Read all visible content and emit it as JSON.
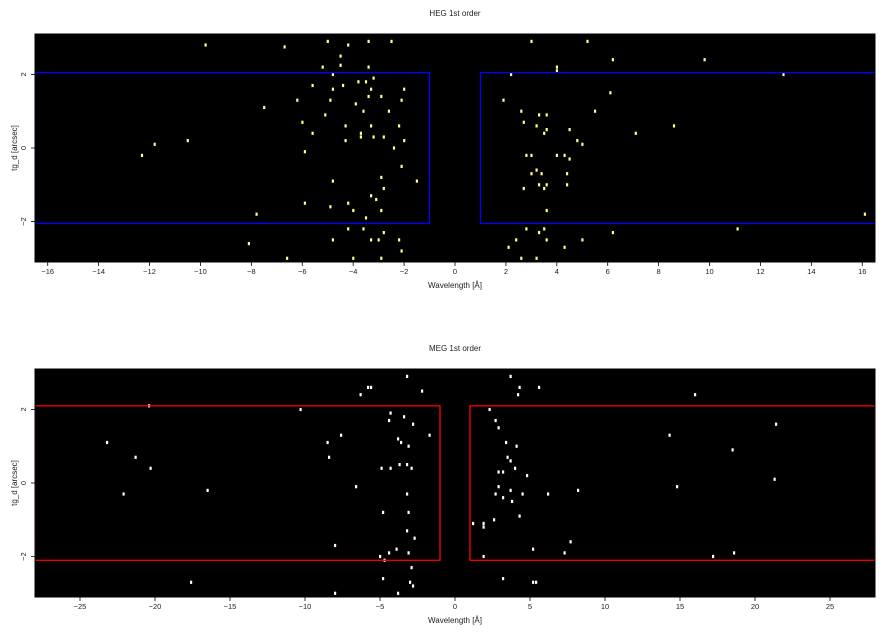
{
  "chart_data": [
    {
      "type": "scatter",
      "title": "HEG 1st order",
      "xlabel": "Wavelength [Å]",
      "ylabel": "tg_d [arcsec]",
      "xlim": [
        -16.5,
        16.5
      ],
      "ylim": [
        -3.1,
        3.1
      ],
      "xticks": [
        -16,
        -14,
        -12,
        -10,
        -8,
        -6,
        -4,
        -2,
        0,
        2,
        4,
        6,
        8,
        10,
        12,
        14,
        16
      ],
      "yticks": [
        -2,
        0,
        2
      ],
      "background": "#000000",
      "marker_color": "#ffff80",
      "region_color": "#0000ff",
      "grid": false,
      "regions": [
        {
          "x0": -16.5,
          "x1": -1.0,
          "y0": -2.05,
          "y1": 2.05
        },
        {
          "x0": 1.0,
          "x1": 16.5,
          "y0": -2.05,
          "y1": 2.05
        }
      ],
      "points": [
        [
          -9.8,
          2.8
        ],
        [
          -6.7,
          2.75
        ],
        [
          -5.0,
          2.9
        ],
        [
          -4.5,
          2.5
        ],
        [
          -4.2,
          2.8
        ],
        [
          -3.4,
          2.9
        ],
        [
          -2.5,
          2.9
        ],
        [
          -5.2,
          2.2
        ],
        [
          -4.8,
          2.0
        ],
        [
          -4.5,
          2.25
        ],
        [
          -3.8,
          1.8
        ],
        [
          -3.4,
          2.2
        ],
        [
          -3.2,
          1.9
        ],
        [
          -2.0,
          1.6
        ],
        [
          -5.6,
          1.7
        ],
        [
          -4.8,
          1.6
        ],
        [
          -4.4,
          1.7
        ],
        [
          -3.5,
          1.8
        ],
        [
          -3.3,
          1.6
        ],
        [
          -2.9,
          1.4
        ],
        [
          -2.1,
          1.3
        ],
        [
          -6.2,
          1.3
        ],
        [
          -7.5,
          1.1
        ],
        [
          -4.9,
          1.3
        ],
        [
          -3.9,
          1.2
        ],
        [
          -3.6,
          1.0
        ],
        [
          -3.4,
          1.4
        ],
        [
          -2.6,
          1.0
        ],
        [
          -6.0,
          0.7
        ],
        [
          -5.6,
          0.4
        ],
        [
          -5.1,
          0.9
        ],
        [
          -4.3,
          0.6
        ],
        [
          -3.7,
          0.4
        ],
        [
          -3.3,
          0.6
        ],
        [
          -2.2,
          0.6
        ],
        [
          -2.0,
          0.2
        ],
        [
          -12.3,
          -0.2
        ],
        [
          -11.8,
          0.1
        ],
        [
          -10.5,
          0.2
        ],
        [
          -5.9,
          -0.1
        ],
        [
          -4.3,
          0.2
        ],
        [
          -3.7,
          0.3
        ],
        [
          -3.2,
          0.3
        ],
        [
          -2.8,
          0.3
        ],
        [
          -2.4,
          0.0
        ],
        [
          -2.1,
          -0.5
        ],
        [
          -1.5,
          -0.9
        ],
        [
          -4.8,
          -0.9
        ],
        [
          -2.9,
          -0.8
        ],
        [
          -2.8,
          -1.1
        ],
        [
          -3.3,
          -1.3
        ],
        [
          -7.8,
          -1.8
        ],
        [
          -5.9,
          -1.5
        ],
        [
          -4.9,
          -1.6
        ],
        [
          -4.2,
          -1.5
        ],
        [
          -4.0,
          -1.7
        ],
        [
          -3.1,
          -1.4
        ],
        [
          -2.9,
          -1.7
        ],
        [
          -3.5,
          -1.9
        ],
        [
          -4.2,
          -2.2
        ],
        [
          -3.6,
          -2.2
        ],
        [
          -2.8,
          -2.3
        ],
        [
          -4.8,
          -2.5
        ],
        [
          -3.3,
          -2.5
        ],
        [
          -3.0,
          -2.5
        ],
        [
          -2.2,
          -2.5
        ],
        [
          -8.1,
          -2.6
        ],
        [
          -2.1,
          -2.8
        ],
        [
          -6.6,
          -3.0
        ],
        [
          -4.0,
          -3.0
        ],
        [
          -2.9,
          -3.0
        ],
        [
          3.0,
          2.9
        ],
        [
          5.2,
          2.9
        ],
        [
          6.2,
          2.4
        ],
        [
          9.8,
          2.4
        ],
        [
          4.0,
          2.1
        ],
        [
          2.2,
          2.0
        ],
        [
          4.0,
          2.2
        ],
        [
          12.9,
          2.0
        ],
        [
          6.1,
          1.5
        ],
        [
          1.9,
          1.3
        ],
        [
          2.6,
          1.0
        ],
        [
          3.3,
          0.9
        ],
        [
          3.6,
          0.9
        ],
        [
          5.5,
          1.0
        ],
        [
          2.7,
          0.7
        ],
        [
          3.2,
          0.6
        ],
        [
          3.5,
          0.4
        ],
        [
          3.6,
          0.5
        ],
        [
          4.5,
          0.5
        ],
        [
          4.8,
          0.2
        ],
        [
          5.0,
          0.1
        ],
        [
          7.1,
          0.4
        ],
        [
          8.6,
          0.6
        ],
        [
          2.8,
          -0.2
        ],
        [
          3.0,
          -0.2
        ],
        [
          4.0,
          -0.2
        ],
        [
          4.3,
          -0.2
        ],
        [
          4.5,
          -0.3
        ],
        [
          3.2,
          -0.6
        ],
        [
          3.0,
          -0.7
        ],
        [
          4.4,
          -0.7
        ],
        [
          3.4,
          -0.7
        ],
        [
          3.3,
          -1.0
        ],
        [
          3.6,
          -1.0
        ],
        [
          3.5,
          -1.1
        ],
        [
          4.4,
          -1.0
        ],
        [
          2.7,
          -1.1
        ],
        [
          3.6,
          -1.7
        ],
        [
          16.1,
          -1.8
        ],
        [
          2.8,
          -2.2
        ],
        [
          3.5,
          -2.2
        ],
        [
          3.3,
          -2.3
        ],
        [
          6.2,
          -2.3
        ],
        [
          11.1,
          -2.2
        ],
        [
          2.4,
          -2.5
        ],
        [
          3.6,
          -2.5
        ],
        [
          5.0,
          -2.5
        ],
        [
          2.1,
          -2.7
        ],
        [
          4.3,
          -2.7
        ],
        [
          2.6,
          -3.0
        ],
        [
          3.2,
          -3.0
        ]
      ]
    },
    {
      "type": "scatter",
      "title": "MEG 1st order",
      "xlabel": "Wavelength [Å]",
      "ylabel": "tg_d [arcsec]",
      "xlim": [
        -28,
        28
      ],
      "ylim": [
        -3.1,
        3.1
      ],
      "xticks": [
        -25,
        -20,
        -15,
        -10,
        -5,
        0,
        5,
        10,
        15,
        20,
        25
      ],
      "yticks": [
        -2,
        0,
        2
      ],
      "background": "#000000",
      "marker_color": "#ffffff",
      "region_color": "#ff0000",
      "grid": false,
      "regions": [
        {
          "x0": -28,
          "x1": -1.0,
          "y0": -2.1,
          "y1": 2.1
        },
        {
          "x0": 1.0,
          "x1": 28,
          "y0": -2.1,
          "y1": 2.1
        }
      ],
      "points": [
        [
          -5.8,
          2.6
        ],
        [
          -5.6,
          2.6
        ],
        [
          -3.2,
          2.9
        ],
        [
          -2.2,
          2.5
        ],
        [
          -6.3,
          2.4
        ],
        [
          -20.4,
          2.1
        ],
        [
          -10.3,
          2.0
        ],
        [
          -4.3,
          1.9
        ],
        [
          -3.4,
          1.8
        ],
        [
          -2.8,
          1.6
        ],
        [
          -7.6,
          1.3
        ],
        [
          -4.4,
          1.7
        ],
        [
          -3.8,
          1.2
        ],
        [
          -3.6,
          1.1
        ],
        [
          -1.7,
          1.3
        ],
        [
          -23.2,
          1.1
        ],
        [
          -8.5,
          1.1
        ],
        [
          -3.1,
          1.0
        ],
        [
          -8.4,
          0.7
        ],
        [
          -21.3,
          0.7
        ],
        [
          -20.3,
          0.4
        ],
        [
          -4.9,
          0.4
        ],
        [
          -4.3,
          0.4
        ],
        [
          -3.7,
          0.5
        ],
        [
          -3.2,
          0.5
        ],
        [
          -2.9,
          0.4
        ],
        [
          -22.1,
          -0.3
        ],
        [
          -16.5,
          -0.2
        ],
        [
          -6.6,
          -0.1
        ],
        [
          -3.2,
          -0.3
        ],
        [
          -4.8,
          -0.8
        ],
        [
          -3.1,
          -0.8
        ],
        [
          -3.2,
          -1.3
        ],
        [
          -2.7,
          -1.5
        ],
        [
          -3.1,
          -1.9
        ],
        [
          -3.9,
          -1.8
        ],
        [
          -4.4,
          -1.9
        ],
        [
          -5.0,
          -2.0
        ],
        [
          -4.7,
          -2.1
        ],
        [
          -2.9,
          -2.3
        ],
        [
          -8.0,
          -1.7
        ],
        [
          -4.8,
          -2.6
        ],
        [
          -3.0,
          -2.7
        ],
        [
          -17.6,
          -2.7
        ],
        [
          -8.0,
          -3.0
        ],
        [
          -3.8,
          -3.0
        ],
        [
          -2.8,
          -2.8
        ],
        [
          3.7,
          2.9
        ],
        [
          4.3,
          2.6
        ],
        [
          5.6,
          2.6
        ],
        [
          4.2,
          2.4
        ],
        [
          16.0,
          2.4
        ],
        [
          2.3,
          2.0
        ],
        [
          2.7,
          1.7
        ],
        [
          2.9,
          1.5
        ],
        [
          21.4,
          1.6
        ],
        [
          14.3,
          1.3
        ],
        [
          3.4,
          1.1
        ],
        [
          4.1,
          1.0
        ],
        [
          18.5,
          0.9
        ],
        [
          3.5,
          0.7
        ],
        [
          3.7,
          0.6
        ],
        [
          2.9,
          0.3
        ],
        [
          3.2,
          0.3
        ],
        [
          4.0,
          0.4
        ],
        [
          4.8,
          0.2
        ],
        [
          2.9,
          -0.1
        ],
        [
          3.7,
          -0.2
        ],
        [
          21.3,
          0.1
        ],
        [
          14.8,
          -0.1
        ],
        [
          2.7,
          -0.3
        ],
        [
          4.5,
          -0.3
        ],
        [
          6.2,
          -0.3
        ],
        [
          8.2,
          -0.2
        ],
        [
          3.2,
          -0.4
        ],
        [
          3.8,
          -0.5
        ],
        [
          4.3,
          -0.9
        ],
        [
          1.2,
          -1.1
        ],
        [
          1.9,
          -1.1
        ],
        [
          1.9,
          -1.2
        ],
        [
          2.6,
          -1.0
        ],
        [
          7.7,
          -1.6
        ],
        [
          5.2,
          -1.8
        ],
        [
          7.3,
          -1.9
        ],
        [
          18.6,
          -1.9
        ],
        [
          17.2,
          -2.0
        ],
        [
          1.9,
          -2.0
        ],
        [
          3.2,
          -2.6
        ],
        [
          5.4,
          -2.7
        ],
        [
          5.2,
          -2.7
        ]
      ]
    }
  ]
}
